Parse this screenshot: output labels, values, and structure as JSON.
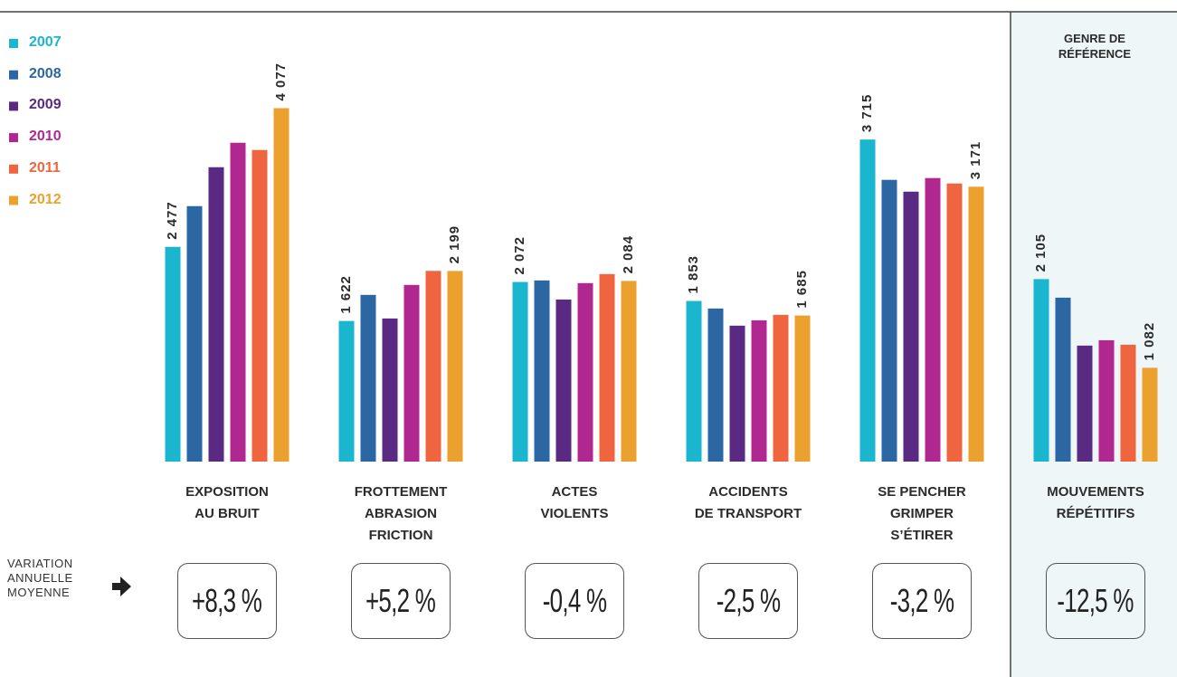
{
  "chart_data": {
    "type": "bar",
    "categories": [
      "EXPOSITION\nAU BRUIT",
      "FROTTEMENT\nABRASION\nFRICTION",
      "ACTES\nVIOLENTS",
      "ACCIDENTS\nDE TRANSPORT",
      "SE PENCHER\nGRIMPER\nS’ÉTIRER",
      "MOUVEMENTS\nRÉPÉTITIFS"
    ],
    "series": [
      {
        "name": "2007",
        "color": "#1ab5cf",
        "values": [
          2477,
          1622,
          2072,
          1853,
          3715,
          2105
        ],
        "value_labels": [
          "2 477",
          "1 622",
          "2 072",
          "1 853",
          "3 715",
          "2 105"
        ]
      },
      {
        "name": "2008",
        "color": "#2b67a3",
        "values": [
          2947,
          1923,
          2090,
          1766,
          3250,
          1891
        ],
        "value_labels": [
          null,
          null,
          null,
          null,
          null,
          null
        ]
      },
      {
        "name": "2009",
        "color": "#5a2a82",
        "values": [
          3396,
          1651,
          1870,
          1568,
          3114,
          1338
        ],
        "value_labels": [
          null,
          null,
          null,
          null,
          null,
          null
        ]
      },
      {
        "name": "2010",
        "color": "#b0288f",
        "values": [
          3678,
          2038,
          2059,
          1630,
          3271,
          1400
        ],
        "value_labels": [
          null,
          null,
          null,
          null,
          null,
          null
        ]
      },
      {
        "name": "2011",
        "color": "#ef6540",
        "values": [
          3595,
          2200,
          2163,
          1693,
          3208,
          1348
        ],
        "value_labels": [
          null,
          null,
          null,
          null,
          null,
          null
        ]
      },
      {
        "name": "2012",
        "color": "#eaa12d",
        "values": [
          4077,
          2199,
          2084,
          1685,
          3171,
          1082
        ],
        "value_labels": [
          "4 077",
          "2 199",
          "2 084",
          "1 685",
          "3 171",
          "1 082"
        ]
      }
    ],
    "ylim": [
      0,
      4500
    ],
    "legend": "left",
    "reference_label": "GENRE DE\nRÉFÉRENCE",
    "variation": {
      "label": "VARIATION\nANNUELLE\nMOYENNE",
      "values": [
        8.3,
        5.2,
        -0.4,
        -2.5,
        -3.2,
        -12.5
      ],
      "value_labels": [
        "+8,3 %",
        "+5,2 %",
        "-0,4 %",
        "-2,5 %",
        "-3,2 %",
        "-12,5 %"
      ]
    }
  }
}
